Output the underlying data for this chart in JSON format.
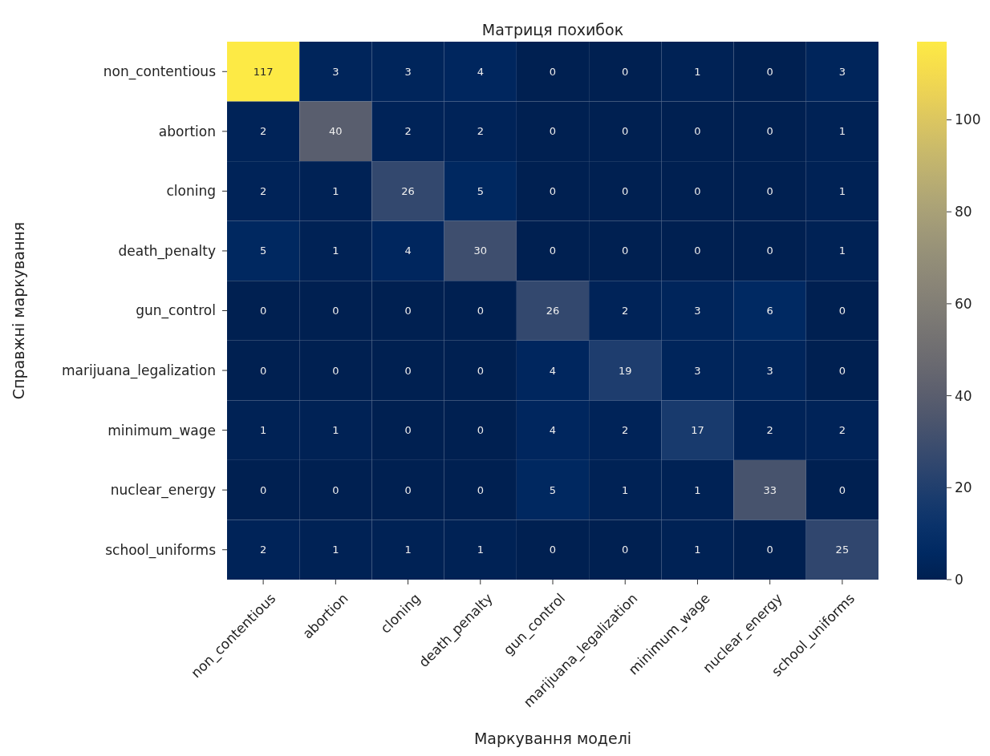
{
  "chart_data": {
    "type": "heatmap",
    "title": "Матриця похибок",
    "xlabel": "Маркування моделі",
    "ylabel": "Справжні маркування",
    "categories": [
      "non_contentious",
      "abortion",
      "cloning",
      "death_penalty",
      "gun_control",
      "marijuana_legalization",
      "minimum_wage",
      "nuclear_energy",
      "school_uniforms"
    ],
    "y_categories": [
      "non_contentious",
      "abortion",
      "cloning",
      "death_penalty",
      "gun_control",
      "marijuana_legalization",
      "minimum_wage",
      "nuclear_energy",
      "school_uniforms"
    ],
    "cells": [
      [
        117,
        3,
        3,
        4,
        0,
        0,
        1,
        0,
        3
      ],
      [
        2,
        40,
        2,
        2,
        0,
        0,
        0,
        0,
        1
      ],
      [
        2,
        1,
        26,
        5,
        0,
        0,
        0,
        0,
        1
      ],
      [
        5,
        1,
        4,
        30,
        0,
        0,
        0,
        0,
        1
      ],
      [
        0,
        0,
        0,
        0,
        26,
        2,
        3,
        6,
        0
      ],
      [
        0,
        0,
        0,
        0,
        4,
        19,
        3,
        3,
        0
      ],
      [
        1,
        1,
        0,
        0,
        4,
        2,
        17,
        2,
        2
      ],
      [
        0,
        0,
        0,
        0,
        5,
        1,
        1,
        33,
        0
      ],
      [
        2,
        1,
        1,
        1,
        0,
        0,
        1,
        0,
        25
      ]
    ],
    "data_labels": true,
    "clim": [
      0,
      117
    ],
    "cticks": [
      0,
      20,
      40,
      60,
      80,
      100
    ]
  }
}
